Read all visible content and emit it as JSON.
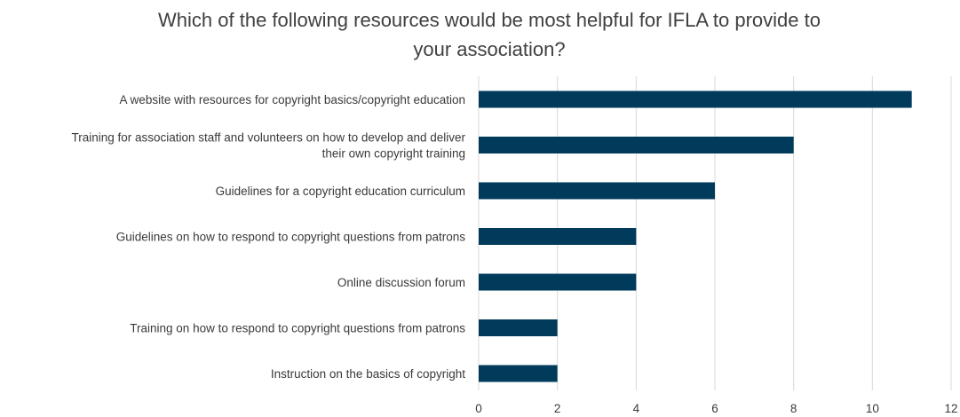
{
  "chart_data": {
    "type": "bar",
    "orientation": "horizontal",
    "title_lines": [
      "Which of the following resources would be most helpful for IFLA to provide to",
      "your association?"
    ],
    "categories": [
      [
        "A website with resources for copyright basics/copyright education"
      ],
      [
        "Training for association staff and volunteers on how to develop and deliver",
        "their own copyright training"
      ],
      [
        "Guidelines for a copyright education curriculum"
      ],
      [
        "Guidelines on how to respond to copyright questions from patrons"
      ],
      [
        "Online discussion forum"
      ],
      [
        "Training on how to respond to copyright questions from patrons"
      ],
      [
        "Instruction on the basics of copyright"
      ]
    ],
    "values": [
      11,
      8,
      6,
      4,
      4,
      2,
      2
    ],
    "xlim": [
      0,
      12
    ],
    "xticks": [
      0,
      2,
      4,
      6,
      8,
      10,
      12
    ],
    "grid": true,
    "legend": "none",
    "bar_color": "#003b5c",
    "xlabel": "",
    "ylabel": ""
  }
}
